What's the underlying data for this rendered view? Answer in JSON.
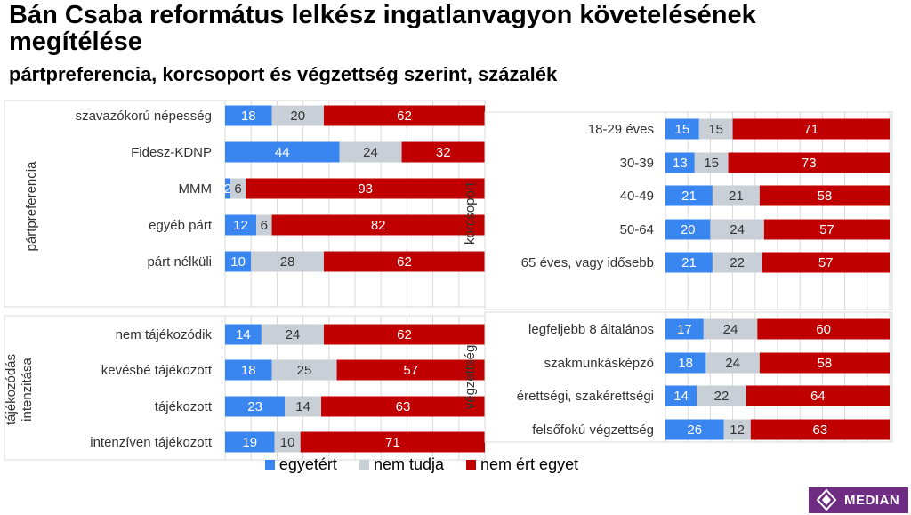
{
  "title": "Bán Csaba református lelkész ingatlanvagyon követelésének megítélése",
  "subtitle": "pártpreferencia, korcsoport és végzettség szerint, százalék",
  "colors": {
    "agree": "#3a86f0",
    "dontknow": "#c9cfd6",
    "disagree": "#c00000",
    "grid": "#d9d9d9",
    "border": "#d9d9d9"
  },
  "legend": [
    {
      "label": "egyetért",
      "color": "#3a86f0"
    },
    {
      "label": "nem tudja",
      "color": "#c9cfd6"
    },
    {
      "label": "nem ért egyet",
      "color": "#c00000"
    }
  ],
  "logo": {
    "text": "MEDIAN"
  },
  "chart_data": [
    {
      "type": "bar",
      "group_label": "pártpreferencia",
      "categories": [
        "szavazókorú népesség",
        "Fidesz-KDNP",
        "MMM",
        "egyéb párt",
        "párt nélküli"
      ],
      "series": [
        {
          "name": "egyetért",
          "values": [
            18,
            44,
            2,
            12,
            10
          ]
        },
        {
          "name": "nem tudja",
          "values": [
            20,
            24,
            6,
            6,
            28
          ]
        },
        {
          "name": "nem ért egyet",
          "values": [
            62,
            32,
            93,
            82,
            62
          ]
        }
      ],
      "stacked": true,
      "orientation": "horizontal",
      "xlim": [
        0,
        100
      ]
    },
    {
      "type": "bar",
      "group_label": "tájékozódás intenzitása",
      "categories": [
        "nem tájékozódik",
        "kevésbé tájékozott",
        "tájékozott",
        "intenzíven tájékozott"
      ],
      "series": [
        {
          "name": "egyetért",
          "values": [
            14,
            18,
            23,
            19
          ]
        },
        {
          "name": "nem tudja",
          "values": [
            24,
            25,
            14,
            10
          ]
        },
        {
          "name": "nem ért egyet",
          "values": [
            62,
            57,
            63,
            71
          ]
        }
      ],
      "stacked": true,
      "orientation": "horizontal",
      "xlim": [
        0,
        100
      ]
    },
    {
      "type": "bar",
      "group_label": "korcsoport",
      "categories": [
        "18-29 éves",
        "30-39",
        "40-49",
        "50-64",
        "65 éves, vagy idősebb"
      ],
      "series": [
        {
          "name": "egyetért",
          "values": [
            15,
            13,
            21,
            20,
            21
          ]
        },
        {
          "name": "nem tudja",
          "values": [
            15,
            15,
            21,
            24,
            22
          ]
        },
        {
          "name": "nem ért egyet",
          "values": [
            71,
            73,
            58,
            57,
            57
          ]
        }
      ],
      "stacked": true,
      "orientation": "horizontal",
      "xlim": [
        0,
        100
      ]
    },
    {
      "type": "bar",
      "group_label": "végzettség",
      "categories": [
        "legfeljebb 8 általános",
        "szakmunkásképző",
        "érettségi, szakérettségi",
        "felsőfokú végzettség"
      ],
      "series": [
        {
          "name": "egyetért",
          "values": [
            17,
            18,
            14,
            26
          ]
        },
        {
          "name": "nem tudja",
          "values": [
            24,
            24,
            22,
            12
          ]
        },
        {
          "name": "nem ért egyet",
          "values": [
            60,
            58,
            64,
            63
          ]
        }
      ],
      "stacked": true,
      "orientation": "horizontal",
      "xlim": [
        0,
        100
      ]
    }
  ]
}
